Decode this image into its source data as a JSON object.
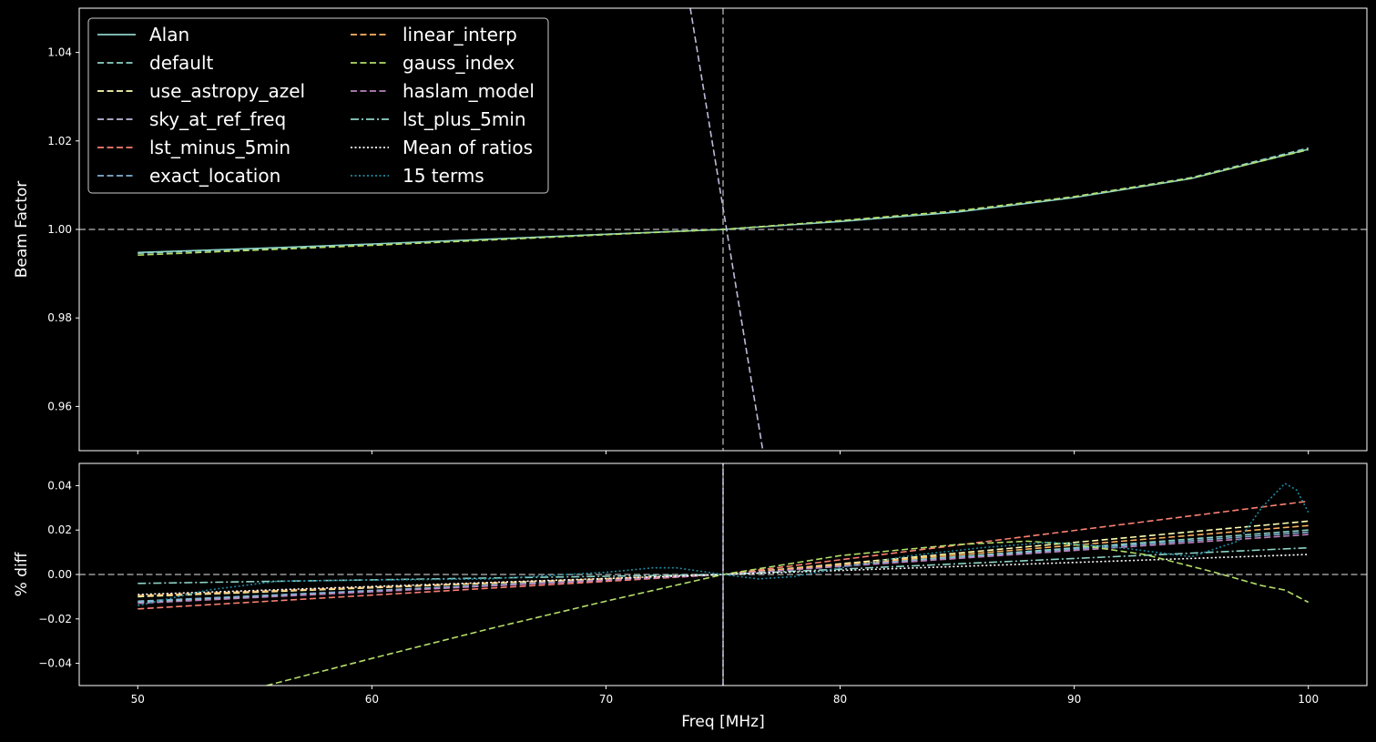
{
  "colors": {
    "background": "#000000",
    "axes_edge": "#ffffff",
    "text": "#ffffff",
    "ref_line": "#9a9a9a"
  },
  "chart_data": [
    {
      "type": "line",
      "panel": "top",
      "ylabel": "Beam Factor",
      "xlabel": "",
      "xlim": [
        47.5,
        102.5
      ],
      "ylim": [
        0.95,
        1.05
      ],
      "x_ticks": [
        50,
        60,
        70,
        80,
        90,
        100
      ],
      "y_ticks": [
        0.96,
        0.98,
        1.0,
        1.02,
        1.04
      ],
      "y_tick_labels": [
        "0.96",
        "0.98",
        "1.00",
        "1.02",
        "1.04"
      ],
      "ref_hline": 1.0,
      "ref_vline": 75,
      "legend_placement": "upper-left",
      "legend": {
        "columns": 2,
        "entries": [
          {
            "name": "Alan",
            "color": "#8dd3c7",
            "style": "solid"
          },
          {
            "name": "default",
            "color": "#8dd3c7",
            "style": "dashed"
          },
          {
            "name": "use_astropy_azel",
            "color": "#ffffb3",
            "style": "dashed"
          },
          {
            "name": "sky_at_ref_freq",
            "color": "#bebada",
            "style": "dashed"
          },
          {
            "name": "lst_minus_5min",
            "color": "#fb8072",
            "style": "dashed"
          },
          {
            "name": "exact_location",
            "color": "#80b1d3",
            "style": "dashed"
          },
          {
            "name": "linear_interp",
            "color": "#fdb462",
            "style": "dashed"
          },
          {
            "name": "gauss_index",
            "color": "#b3de69",
            "style": "dashed"
          },
          {
            "name": "haslam_model",
            "color": "#bc82bd",
            "style": "dashed"
          },
          {
            "name": "lst_plus_5min",
            "color": "#8dd3c7",
            "style": "dashdot"
          },
          {
            "name": "Mean of ratios",
            "color": "#ffffff",
            "style": "dotted"
          },
          {
            "name": "15 terms",
            "color": "#1f8aa0",
            "style": "dotted"
          }
        ]
      },
      "series": [
        {
          "key": "Alan",
          "color": "#8dd3c7",
          "style": "solid",
          "x": [
            50,
            55,
            60,
            65,
            70,
            75,
            80,
            85,
            90,
            95,
            100
          ],
          "y": [
            0.9948,
            0.9957,
            0.9967,
            0.9978,
            0.9989,
            1.0,
            1.0018,
            1.0039,
            1.0072,
            1.0115,
            1.0181
          ]
        },
        {
          "key": "default",
          "color": "#8dd3c7",
          "style": "dashed",
          "x": [
            50,
            55,
            60,
            65,
            70,
            75,
            80,
            85,
            90,
            95,
            100
          ],
          "y": [
            0.9946,
            0.9956,
            0.9966,
            0.9977,
            0.9989,
            1.0,
            1.0019,
            1.004,
            1.0074,
            1.0117,
            1.0184
          ]
        },
        {
          "key": "gauss_index",
          "color": "#b3de69",
          "style": "dashed",
          "x": [
            50,
            55,
            60,
            65,
            70,
            75,
            80,
            85,
            90,
            95,
            100
          ],
          "y": [
            0.9942,
            0.9953,
            0.9964,
            0.9976,
            0.9988,
            1.0,
            1.002,
            1.0042,
            1.0074,
            1.0116,
            1.018
          ]
        },
        {
          "key": "sky_at_ref_freq",
          "color": "#bebada",
          "style": "dashed",
          "x": [
            73.6,
            76.7
          ],
          "y": [
            1.05,
            0.95
          ]
        }
      ]
    },
    {
      "type": "line",
      "panel": "bottom",
      "ylabel": "% diff",
      "xlabel": "Freq [MHz]",
      "xlim": [
        47.5,
        102.5
      ],
      "ylim": [
        -0.05,
        0.05
      ],
      "x_ticks": [
        50,
        60,
        70,
        80,
        90,
        100
      ],
      "x_tick_labels": [
        "50",
        "60",
        "70",
        "80",
        "90",
        "100"
      ],
      "y_ticks": [
        -0.04,
        -0.02,
        0.0,
        0.02,
        0.04
      ],
      "y_tick_labels": [
        "−0.04",
        "−0.02",
        "0.00",
        "0.02",
        "0.04"
      ],
      "ref_hline": 0.0,
      "ref_vline": 75,
      "series": [
        {
          "key": "default",
          "color": "#8dd3c7",
          "style": "dashed",
          "x": [
            50,
            75,
            100
          ],
          "y": [
            -0.0125,
            0,
            0.02
          ]
        },
        {
          "key": "use_astropy_azel",
          "color": "#ffffb3",
          "style": "dashed",
          "x": [
            50,
            75,
            100
          ],
          "y": [
            -0.01,
            0,
            0.024
          ]
        },
        {
          "key": "lst_minus_5min",
          "color": "#fb8072",
          "style": "dashed",
          "x": [
            50,
            75,
            100
          ],
          "y": [
            -0.0155,
            0,
            0.033
          ]
        },
        {
          "key": "exact_location",
          "color": "#80b1d3",
          "style": "dashed",
          "x": [
            50,
            75,
            100
          ],
          "y": [
            -0.012,
            0,
            0.019
          ]
        },
        {
          "key": "linear_interp",
          "color": "#fdb462",
          "style": "dashed",
          "x": [
            50,
            75,
            100
          ],
          "y": [
            -0.0095,
            0,
            0.022
          ]
        },
        {
          "key": "haslam_model",
          "color": "#bc82bd",
          "style": "dashed",
          "x": [
            50,
            75,
            100
          ],
          "y": [
            -0.013,
            0,
            0.018
          ]
        },
        {
          "key": "lst_plus_5min",
          "color": "#8dd3c7",
          "style": "dashdot",
          "x": [
            50,
            75,
            100
          ],
          "y": [
            -0.004,
            0,
            0.012
          ]
        },
        {
          "key": "Mean of ratios",
          "color": "#ffffff",
          "style": "dotted",
          "x": [
            50,
            75,
            100
          ],
          "y": [
            -0.009,
            0,
            0.009
          ]
        },
        {
          "key": "gauss_index",
          "color": "#b3de69",
          "style": "dashed",
          "x": [
            55.5,
            60,
            65,
            70,
            75,
            80,
            85,
            88,
            90,
            93,
            96,
            98,
            99,
            100
          ],
          "y": [
            -0.05,
            -0.0378,
            -0.0245,
            -0.012,
            0,
            0.0085,
            0.0135,
            0.015,
            0.0135,
            0.009,
            0.001,
            -0.005,
            -0.007,
            -0.0125
          ]
        },
        {
          "key": "15 terms",
          "color": "#1f8aa0",
          "style": "dotted",
          "x": [
            50,
            53,
            56,
            60,
            65,
            70,
            72,
            73,
            75,
            76.5,
            78,
            80,
            83,
            86,
            89,
            92,
            95,
            97,
            98,
            99,
            99.5,
            100
          ],
          "y": [
            -0.014,
            -0.007,
            -0.003,
            -0.0025,
            -0.002,
            0.001,
            0.003,
            0.003,
            0,
            -0.002,
            -0.001,
            0.003,
            0.0085,
            0.012,
            0.0145,
            0.012,
            0.008,
            0.015,
            0.03,
            0.041,
            0.038,
            0.028
          ]
        },
        {
          "key": "sky_at_ref_freq",
          "color": "#bebada",
          "style": "dashed",
          "x": [
            75,
            75
          ],
          "y": [
            -0.05,
            0.05
          ]
        }
      ]
    }
  ]
}
